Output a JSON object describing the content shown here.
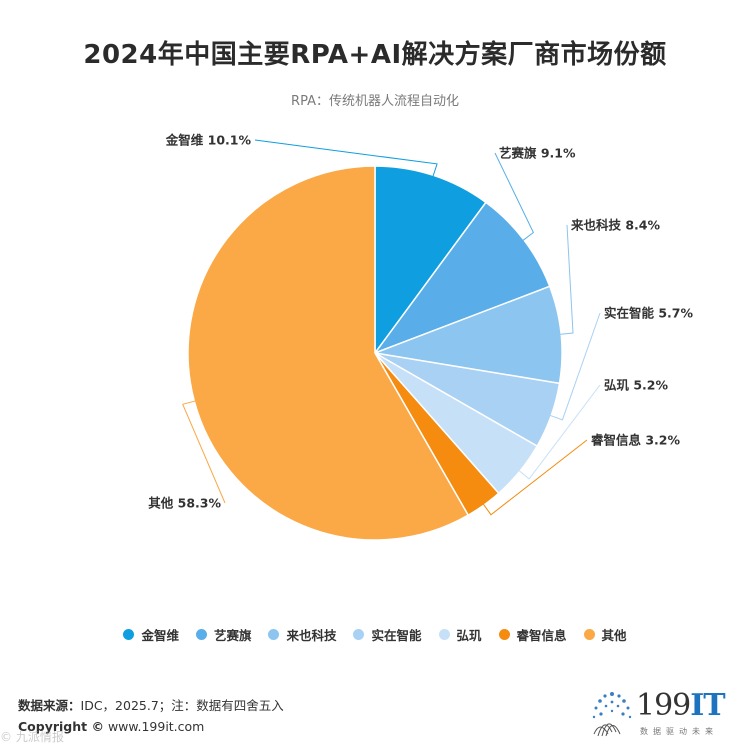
{
  "chart_data": {
    "type": "pie",
    "title": "2024年中国主要RPA+AI解决方案厂商市场份额",
    "subtitle": "RPA：传统机器人流程自动化",
    "slices": [
      {
        "name": "金智维",
        "value": 10.1,
        "label": "金智维 10.1%",
        "color": "#0f9ee0"
      },
      {
        "name": "艺赛旗",
        "value": 9.1,
        "label": "艺赛旗 9.1%",
        "color": "#59aee9"
      },
      {
        "name": "来也科技",
        "value": 8.4,
        "label": "来也科技 8.4%",
        "color": "#8cc5ef"
      },
      {
        "name": "实在智能",
        "value": 5.7,
        "label": "实在智能 5.7%",
        "color": "#a9d1f3"
      },
      {
        "name": "弘玑",
        "value": 5.2,
        "label": "弘玑 5.2%",
        "color": "#c6e0f7"
      },
      {
        "name": "睿智信息",
        "value": 3.2,
        "label": "睿智信息 3.2%",
        "color": "#f58b0f"
      },
      {
        "name": "其他",
        "value": 58.3,
        "label": "其他 58.3%",
        "color": "#fba846"
      }
    ],
    "legend_position": "bottom"
  },
  "footer": {
    "source_label": "数据来源：",
    "source_text": "IDC，2025.7；注：数据有四舍五入",
    "copyright_label": "Copyright ©",
    "copyright_text": " www.199it.com"
  },
  "logo": {
    "name": "199",
    "suffix": "IT",
    "tagline": "数据驱动未来"
  },
  "watermark": "© 九派情报"
}
